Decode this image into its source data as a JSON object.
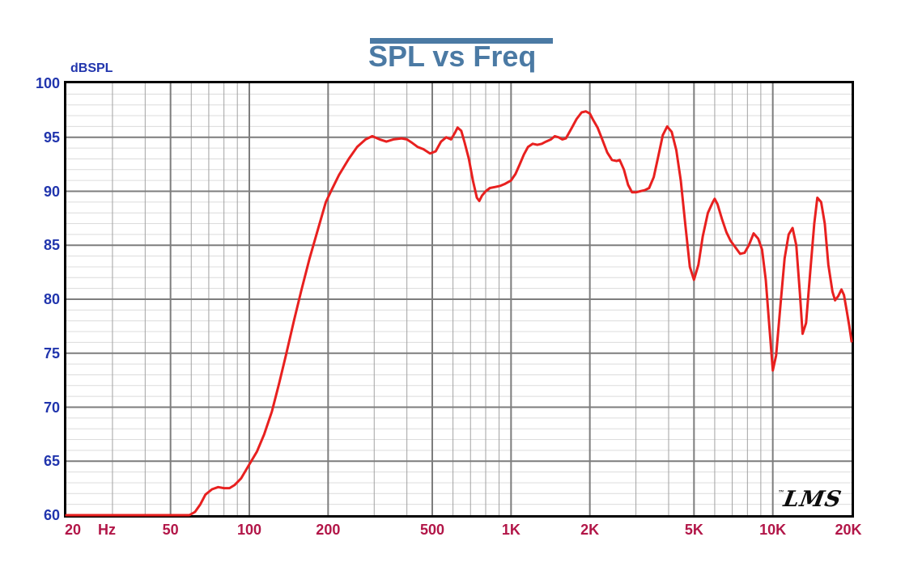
{
  "title": {
    "text": "SPL vs Freq",
    "color": "#4b7aa4"
  },
  "y_axis": {
    "label": "dBSPL",
    "color": "#2135ad",
    "min": 60,
    "max": 100,
    "major_step": 5,
    "minor_step": 1,
    "tick_labels": [
      "100",
      "95",
      "90",
      "85",
      "80",
      "75",
      "70",
      "65",
      "60"
    ]
  },
  "x_axis": {
    "color": "#b21648",
    "scale": "log",
    "min_hz": 20,
    "max_hz": 20000,
    "ticks": [
      {
        "f": 20,
        "label": "20",
        "dx": 8
      },
      {
        "f": 20,
        "label": "Hz",
        "dx": 50
      },
      {
        "f": 50,
        "label": "50",
        "dx": 0
      },
      {
        "f": 100,
        "label": "100",
        "dx": 0
      },
      {
        "f": 200,
        "label": "200",
        "dx": 0
      },
      {
        "f": 500,
        "label": "500",
        "dx": 0
      },
      {
        "f": 1000,
        "label": "1K",
        "dx": 0
      },
      {
        "f": 2000,
        "label": "2K",
        "dx": 0
      },
      {
        "f": 5000,
        "label": "5K",
        "dx": 0
      },
      {
        "f": 10000,
        "label": "10K",
        "dx": 0
      },
      {
        "f": 20000,
        "label": "20K",
        "dx": -4
      }
    ]
  },
  "logo": {
    "text": "LMS",
    "trademark": "™"
  },
  "colors": {
    "curve": "#e8201f",
    "grid_major": "#7d7d7d",
    "grid_minor_vertical": "#a2a2a2",
    "grid_minor_horizontal": "#dcdcdc",
    "axis_border": "#000000",
    "background": "#ffffff"
  },
  "chart_data": {
    "type": "line",
    "title": "SPL vs Freq",
    "xlabel": "Hz",
    "ylabel": "dBSPL",
    "x_scale": "log",
    "xlim": [
      20,
      20000
    ],
    "ylim": [
      60,
      100
    ],
    "x_ticks": [
      20,
      50,
      100,
      200,
      500,
      1000,
      2000,
      5000,
      10000,
      20000
    ],
    "x_tick_labels": [
      "20 Hz",
      "50",
      "100",
      "200",
      "500",
      "1K",
      "2K",
      "5K",
      "10K",
      "20K"
    ],
    "y_major_grid_step": 5,
    "y_minor_grid_step": 1,
    "grid": "on",
    "legend": "none",
    "annotation": "LMS",
    "series": [
      {
        "name": "SPL",
        "color": "#e8201f",
        "points": [
          [
            20,
            60
          ],
          [
            25,
            60
          ],
          [
            30,
            60
          ],
          [
            35,
            60
          ],
          [
            40,
            60
          ],
          [
            45,
            60
          ],
          [
            50,
            60
          ],
          [
            55,
            60
          ],
          [
            59,
            60
          ],
          [
            62,
            60.3
          ],
          [
            65,
            61.0
          ],
          [
            68,
            61.9
          ],
          [
            72,
            62.4
          ],
          [
            76,
            62.6
          ],
          [
            80,
            62.5
          ],
          [
            84,
            62.5
          ],
          [
            88,
            62.8
          ],
          [
            93,
            63.4
          ],
          [
            100,
            64.7
          ],
          [
            107,
            65.9
          ],
          [
            114,
            67.5
          ],
          [
            122,
            69.6
          ],
          [
            130,
            72.2
          ],
          [
            138,
            74.8
          ],
          [
            148,
            78.0
          ],
          [
            158,
            80.8
          ],
          [
            170,
            83.8
          ],
          [
            183,
            86.5
          ],
          [
            196,
            89.0
          ],
          [
            206,
            90.1
          ],
          [
            220,
            91.5
          ],
          [
            240,
            93.0
          ],
          [
            258,
            94.1
          ],
          [
            278,
            94.8
          ],
          [
            295,
            95.1
          ],
          [
            315,
            94.8
          ],
          [
            334,
            94.6
          ],
          [
            355,
            94.8
          ],
          [
            382,
            94.9
          ],
          [
            400,
            94.8
          ],
          [
            418,
            94.5
          ],
          [
            440,
            94.1
          ],
          [
            462,
            93.9
          ],
          [
            490,
            93.5
          ],
          [
            515,
            93.7
          ],
          [
            540,
            94.6
          ],
          [
            565,
            95.0
          ],
          [
            590,
            94.8
          ],
          [
            610,
            95.4
          ],
          [
            625,
            95.9
          ],
          [
            645,
            95.6
          ],
          [
            665,
            94.5
          ],
          [
            690,
            93.0
          ],
          [
            715,
            91.0
          ],
          [
            740,
            89.4
          ],
          [
            756,
            89.1
          ],
          [
            775,
            89.6
          ],
          [
            800,
            90.0
          ],
          [
            830,
            90.3
          ],
          [
            870,
            90.4
          ],
          [
            910,
            90.5
          ],
          [
            950,
            90.7
          ],
          [
            1000,
            91.0
          ],
          [
            1040,
            91.6
          ],
          [
            1080,
            92.5
          ],
          [
            1120,
            93.4
          ],
          [
            1160,
            94.1
          ],
          [
            1210,
            94.4
          ],
          [
            1260,
            94.3
          ],
          [
            1310,
            94.4
          ],
          [
            1360,
            94.6
          ],
          [
            1420,
            94.8
          ],
          [
            1470,
            95.1
          ],
          [
            1520,
            95.0
          ],
          [
            1570,
            94.8
          ],
          [
            1620,
            94.9
          ],
          [
            1700,
            95.8
          ],
          [
            1780,
            96.7
          ],
          [
            1860,
            97.3
          ],
          [
            1930,
            97.4
          ],
          [
            2000,
            97.2
          ],
          [
            2060,
            96.6
          ],
          [
            2140,
            95.9
          ],
          [
            2230,
            94.8
          ],
          [
            2330,
            93.6
          ],
          [
            2430,
            92.9
          ],
          [
            2530,
            92.8
          ],
          [
            2600,
            92.9
          ],
          [
            2700,
            92.0
          ],
          [
            2800,
            90.6
          ],
          [
            2900,
            89.9
          ],
          [
            3000,
            89.9
          ],
          [
            3110,
            90.0
          ],
          [
            3240,
            90.1
          ],
          [
            3370,
            90.3
          ],
          [
            3510,
            91.3
          ],
          [
            3650,
            93.2
          ],
          [
            3800,
            95.2
          ],
          [
            3950,
            96.0
          ],
          [
            4110,
            95.5
          ],
          [
            4280,
            93.8
          ],
          [
            4450,
            91.0
          ],
          [
            4630,
            87.0
          ],
          [
            4820,
            83.0
          ],
          [
            5000,
            81.8
          ],
          [
            5200,
            83.2
          ],
          [
            5400,
            85.8
          ],
          [
            5650,
            88.0
          ],
          [
            5900,
            89.0
          ],
          [
            6000,
            89.3
          ],
          [
            6150,
            88.8
          ],
          [
            6400,
            87.4
          ],
          [
            6650,
            86.2
          ],
          [
            6900,
            85.4
          ],
          [
            7200,
            84.8
          ],
          [
            7500,
            84.2
          ],
          [
            7800,
            84.3
          ],
          [
            8100,
            85.0
          ],
          [
            8450,
            86.1
          ],
          [
            8800,
            85.6
          ],
          [
            9100,
            84.6
          ],
          [
            9400,
            81.8
          ],
          [
            9700,
            77.5
          ],
          [
            10000,
            73.4
          ],
          [
            10300,
            74.8
          ],
          [
            10700,
            79.5
          ],
          [
            11100,
            83.8
          ],
          [
            11500,
            86.0
          ],
          [
            11900,
            86.6
          ],
          [
            12300,
            85.0
          ],
          [
            12700,
            80.5
          ],
          [
            13000,
            76.8
          ],
          [
            13400,
            77.8
          ],
          [
            13900,
            82.5
          ],
          [
            14400,
            87.0
          ],
          [
            14800,
            89.4
          ],
          [
            15300,
            89.0
          ],
          [
            15800,
            87.0
          ],
          [
            16300,
            83.2
          ],
          [
            16900,
            80.7
          ],
          [
            17300,
            79.9
          ],
          [
            17800,
            80.3
          ],
          [
            18300,
            80.9
          ],
          [
            18700,
            80.4
          ],
          [
            19200,
            78.8
          ],
          [
            19600,
            77.5
          ],
          [
            20000,
            76.1
          ]
        ]
      }
    ]
  }
}
